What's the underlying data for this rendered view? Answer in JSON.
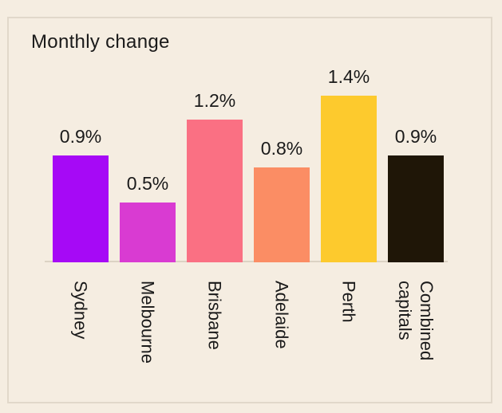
{
  "colors": {
    "background": "#F5EDE1",
    "card_border": "#E1D8CA",
    "axis_line": "#DCD3C4",
    "text": "#1A1A1A"
  },
  "chart_data": {
    "type": "bar",
    "title": "Monthly change",
    "categories": [
      "Sydney",
      "Melbourne",
      "Brisbane",
      "Adelaide",
      "Perth",
      "Combined capitals"
    ],
    "category_lines": [
      [
        "Sydney"
      ],
      [
        "Melbourne"
      ],
      [
        "Brisbane"
      ],
      [
        "Adelaide"
      ],
      [
        "Perth"
      ],
      [
        "Combined",
        "capitals"
      ]
    ],
    "values": [
      0.9,
      0.5,
      1.2,
      0.8,
      1.4,
      0.9
    ],
    "value_labels": [
      "0.9%",
      "0.5%",
      "1.2%",
      "0.8%",
      "1.4%",
      "0.9%"
    ],
    "bar_colors": [
      "#A609F6",
      "#D93BD2",
      "#FA7083",
      "#FB8D64",
      "#FDCA2D",
      "#1F1607"
    ],
    "xlabel": "",
    "ylabel": "",
    "ylim": [
      0,
      1.4
    ],
    "grid": false,
    "legend": false,
    "data_label_position": "above-bar",
    "category_label_rotation_deg": 90
  }
}
